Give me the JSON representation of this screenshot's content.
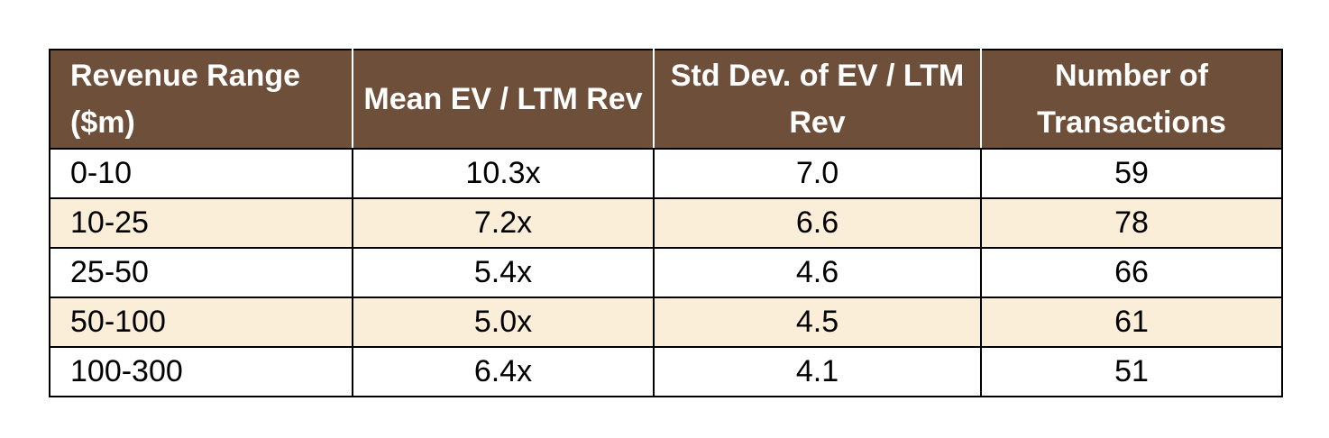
{
  "table": {
    "headers": [
      "Revenue Range ($m)",
      "Mean EV / LTM Rev",
      "Std Dev. of EV / LTM Rev",
      "Number of Transactions"
    ],
    "rows": [
      [
        "0-10",
        "10.3x",
        "7.0",
        "59"
      ],
      [
        "10-25",
        "7.2x",
        "6.6",
        "78"
      ],
      [
        "25-50",
        "5.4x",
        "4.6",
        "66"
      ],
      [
        "50-100",
        "5.0x",
        "4.5",
        "61"
      ],
      [
        "100-300",
        "6.4x",
        "4.1",
        "51"
      ]
    ]
  },
  "colors": {
    "header_bg": "#6e4f3a",
    "header_text": "#ffffff",
    "alt_row_bg": "#fbeed9",
    "row_bg": "#ffffff",
    "border": "#000000"
  }
}
